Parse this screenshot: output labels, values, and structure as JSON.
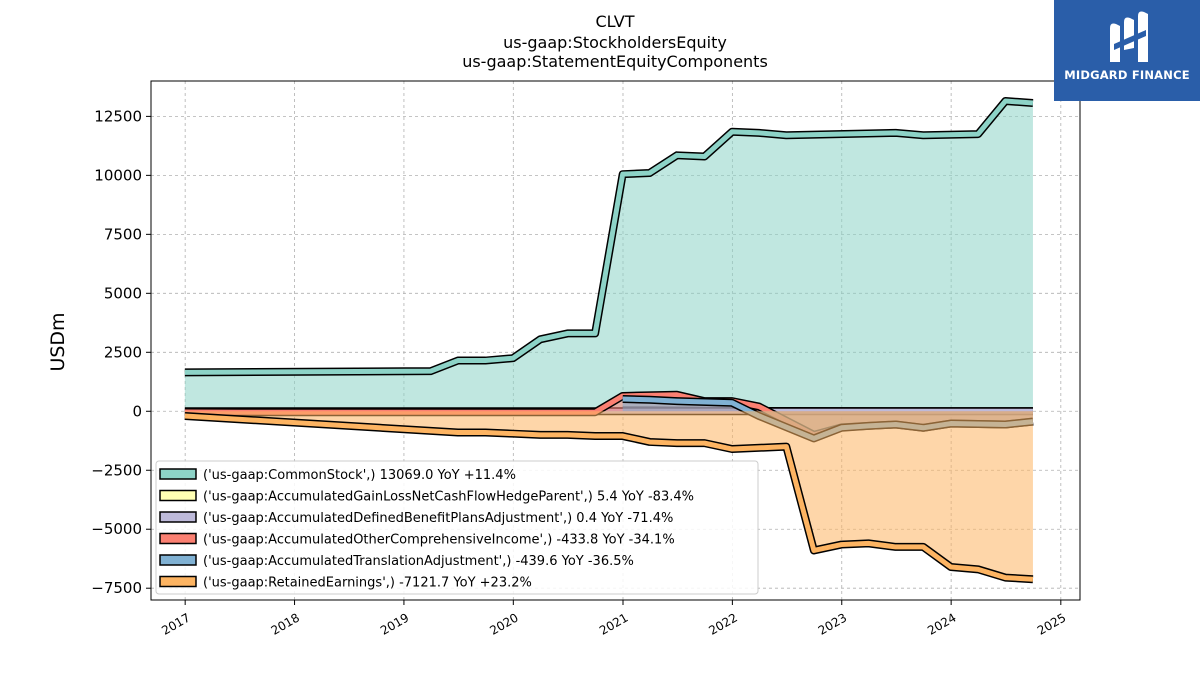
{
  "chart_data": {
    "type": "area",
    "title_lines": [
      "CLVT",
      "us-gaap:StockholdersEquity",
      "us-gaap:StatementEquityComponents"
    ],
    "ylabel": "USDm",
    "xlabel": "",
    "ylim": [
      -8000,
      14000
    ],
    "yticks": [
      12500,
      10000,
      7500,
      5000,
      2500,
      0,
      -2500,
      -5000,
      -7500
    ],
    "ytick_labels": [
      "12500",
      "10000",
      "7500",
      "5000",
      "2500",
      "0",
      "−2500",
      "−5000",
      "−7500"
    ],
    "xlim": [
      "2016-09-09",
      "2025-03-06"
    ],
    "xticks": [
      "2017-01-01",
      "2018-01-01",
      "2019-01-01",
      "2020-01-01",
      "2021-01-01",
      "2022-01-01",
      "2023-01-01",
      "2024-01-01",
      "2025-01-01"
    ],
    "xtick_labels": [
      "2017",
      "2018",
      "2019",
      "2020",
      "2021",
      "2022",
      "2023",
      "2024",
      "2025"
    ],
    "grid": true,
    "legend_position": "lower-left",
    "series": [
      {
        "name": "('us-gaap:CommonStock',) 13069.0 YoY +11.4%",
        "color": "#8dd3c7",
        "start": "2016-12-31",
        "points": [
          [
            "2016-12-31",
            1650
          ],
          [
            "2019-03-31",
            1700
          ],
          [
            "2019-06-30",
            2150
          ],
          [
            "2019-09-30",
            2150
          ],
          [
            "2019-12-31",
            2250
          ],
          [
            "2020-03-31",
            3050
          ],
          [
            "2020-06-30",
            3300
          ],
          [
            "2020-09-30",
            3300
          ],
          [
            "2020-12-31",
            10050
          ],
          [
            "2021-03-31",
            10100
          ],
          [
            "2021-06-30",
            10850
          ],
          [
            "2021-09-30",
            10800
          ],
          [
            "2021-12-31",
            11850
          ],
          [
            "2022-03-31",
            11800
          ],
          [
            "2022-06-30",
            11700
          ],
          [
            "2023-06-30",
            11800
          ],
          [
            "2023-09-30",
            11700
          ],
          [
            "2024-03-31",
            11750
          ],
          [
            "2024-06-30",
            13150
          ],
          [
            "2024-09-30",
            13069
          ]
        ]
      },
      {
        "name": "('us-gaap:AccumulatedGainLossNetCashFlowHedgeParent',) 5.4 YoY -83.4%",
        "color": "#ffffb3",
        "start": "2020-12-31",
        "points": [
          [
            "2020-12-31",
            40
          ],
          [
            "2021-03-31",
            38
          ],
          [
            "2021-09-30",
            20
          ],
          [
            "2022-06-30",
            10
          ],
          [
            "2023-06-30",
            8
          ],
          [
            "2024-09-30",
            5.4
          ]
        ]
      },
      {
        "name": "('us-gaap:AccumulatedDefinedBenefitPlansAdjustment',) 0.4 YoY -71.4%",
        "color": "#bebada",
        "start": "2016-12-31",
        "points": [
          [
            "2016-12-31",
            2
          ],
          [
            "2020-12-31",
            2
          ],
          [
            "2023-12-31",
            1
          ],
          [
            "2024-09-30",
            0.4
          ]
        ]
      },
      {
        "name": "('us-gaap:AccumulatedOtherComprehensiveIncome',) -433.8 YoY -34.1%",
        "color": "#fb8072",
        "start": "2016-12-31",
        "points": [
          [
            "2016-12-31",
            -30
          ],
          [
            "2017-06-30",
            -40
          ],
          [
            "2020-09-30",
            -40
          ],
          [
            "2020-12-31",
            650
          ],
          [
            "2021-06-30",
            700
          ],
          [
            "2021-09-30",
            430
          ],
          [
            "2021-12-31",
            430
          ],
          [
            "2022-03-31",
            200
          ],
          [
            "2022-09-30",
            -1000
          ],
          [
            "2022-12-31",
            -680
          ],
          [
            "2023-06-30",
            -560
          ],
          [
            "2023-09-30",
            -700
          ],
          [
            "2023-12-31",
            -520
          ],
          [
            "2024-06-30",
            -560
          ],
          [
            "2024-09-30",
            -433.8
          ]
        ]
      },
      {
        "name": "('us-gaap:AccumulatedTranslationAdjustment',) -439.6 YoY -36.5%",
        "color": "#80b1d3",
        "start": "2020-12-31",
        "points": [
          [
            "2020-12-31",
            520
          ],
          [
            "2021-03-31",
            490
          ],
          [
            "2021-06-30",
            430
          ],
          [
            "2021-12-31",
            360
          ],
          [
            "2022-03-31",
            -200
          ],
          [
            "2022-09-30",
            -1150
          ],
          [
            "2022-12-31",
            -700
          ],
          [
            "2023-03-31",
            -620
          ],
          [
            "2023-06-30",
            -560
          ],
          [
            "2023-09-30",
            -700
          ],
          [
            "2023-12-31",
            -520
          ],
          [
            "2024-06-30",
            -560
          ],
          [
            "2024-09-30",
            -439.6
          ]
        ]
      },
      {
        "name": "('us-gaap:RetainedEarnings',) -7121.7 YoY +23.2%",
        "color": "#fdb462",
        "start": "2016-12-31",
        "points": [
          [
            "2016-12-31",
            -200
          ],
          [
            "2019-06-30",
            -900
          ],
          [
            "2019-09-30",
            -900
          ],
          [
            "2019-12-31",
            -950
          ],
          [
            "2020-03-31",
            -1000
          ],
          [
            "2020-06-30",
            -1000
          ],
          [
            "2020-09-30",
            -1050
          ],
          [
            "2020-12-31",
            -1050
          ],
          [
            "2021-03-31",
            -1300
          ],
          [
            "2021-06-30",
            -1350
          ],
          [
            "2021-09-30",
            -1350
          ],
          [
            "2021-12-31",
            -1600
          ],
          [
            "2022-06-30",
            -1500
          ],
          [
            "2022-09-30",
            -5900
          ],
          [
            "2022-12-31",
            -5650
          ],
          [
            "2023-03-31",
            -5600
          ],
          [
            "2023-06-30",
            -5750
          ],
          [
            "2023-09-30",
            -5750
          ],
          [
            "2023-12-31",
            -6600
          ],
          [
            "2024-03-31",
            -6700
          ],
          [
            "2024-06-30",
            -7050
          ],
          [
            "2024-09-30",
            -7121.7
          ]
        ]
      }
    ]
  },
  "logo": {
    "text": "MIDGARD FINANCE"
  }
}
